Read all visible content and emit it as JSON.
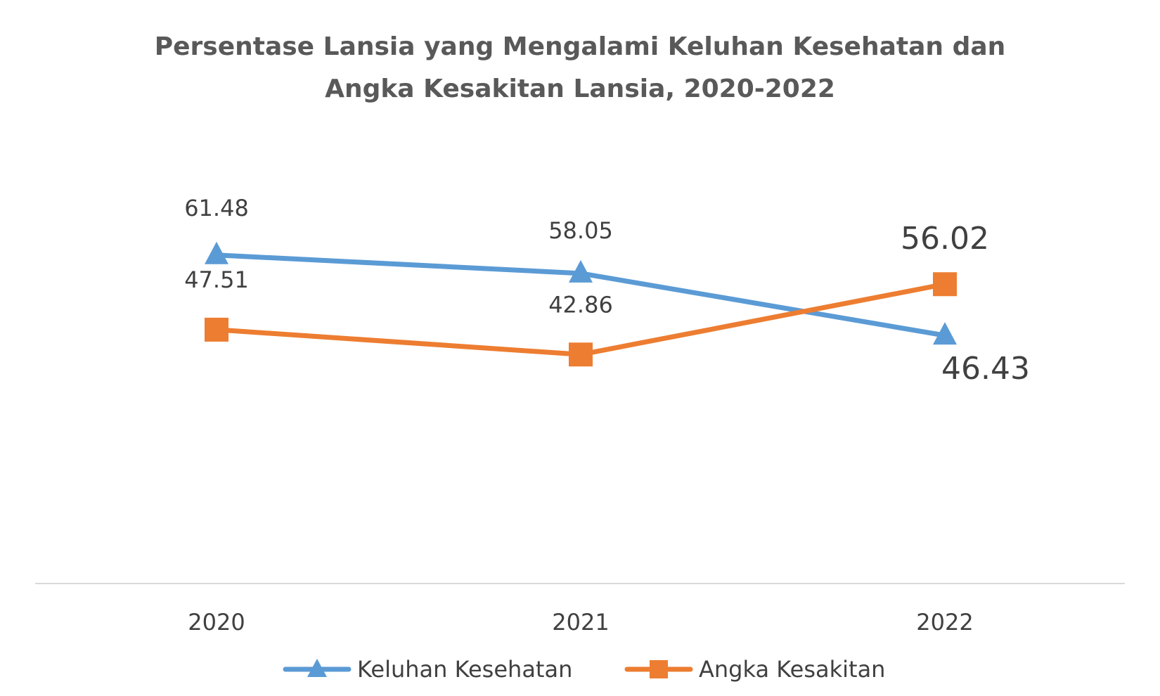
{
  "chart_data": {
    "type": "line",
    "title": "Persentase Lansia yang Mengalami Keluhan Kesehatan dan Angka Kesakitan Lansia, 2020-2022",
    "title_lines": [
      "Persentase Lansia yang Mengalami Keluhan Kesehatan dan",
      "Angka Kesakitan Lansia, 2020-2022"
    ],
    "categories": [
      "2020",
      "2021",
      "2022"
    ],
    "series": [
      {
        "name": "Keluhan Kesehatan",
        "values": [
          61.48,
          58.05,
          46.43
        ],
        "labels": [
          "61.48",
          "58.05",
          "46.43"
        ],
        "color": "#5B9BD5",
        "marker": "triangle"
      },
      {
        "name": "Angka Kesakitan",
        "values": [
          47.51,
          42.86,
          56.02
        ],
        "labels": [
          "47.51",
          "42.86",
          "56.02"
        ],
        "color": "#ED7D31",
        "marker": "square"
      }
    ],
    "ylim": [
      0,
      70
    ],
    "y_axis_visible": false,
    "grid": false,
    "legend_position": "bottom"
  }
}
